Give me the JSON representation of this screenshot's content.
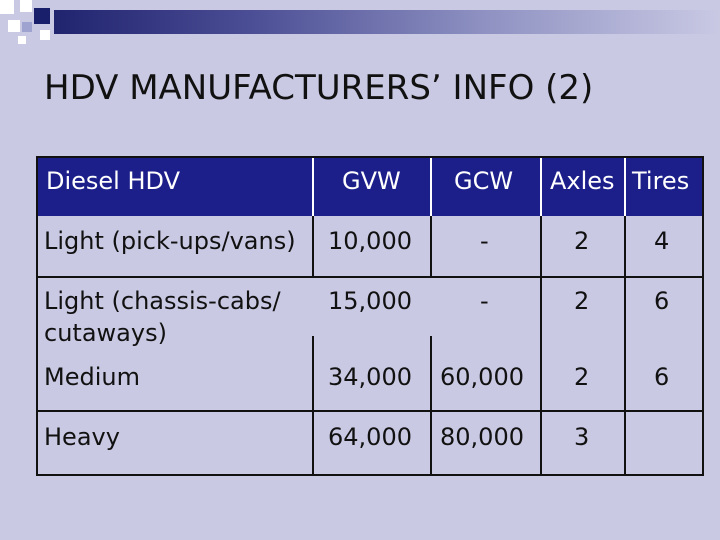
{
  "slide": {
    "title": "HDV MANUFACTURERS’ INFO (2)"
  },
  "table": {
    "headers": [
      "Diesel HDV",
      "GVW",
      "GCW",
      "Axles",
      "Tires"
    ],
    "rows": [
      [
        "Light (pick-ups/vans)",
        "10,000",
        "-",
        "2",
        "4"
      ],
      [
        "Light (chassis-cabs/",
        "15,000",
        "-",
        "2",
        "6"
      ],
      [
        "cutaways)",
        "",
        "",
        "",
        ""
      ],
      [
        "Medium",
        "34,000",
        "60,000",
        "2",
        "6"
      ],
      [
        "Heavy",
        "64,000",
        "80,000",
        "3",
        ""
      ]
    ]
  },
  "colors": {
    "background": "#c9c9e4",
    "header_fill": "#1c1f8a",
    "accent_navy": "#1a1f6b"
  }
}
